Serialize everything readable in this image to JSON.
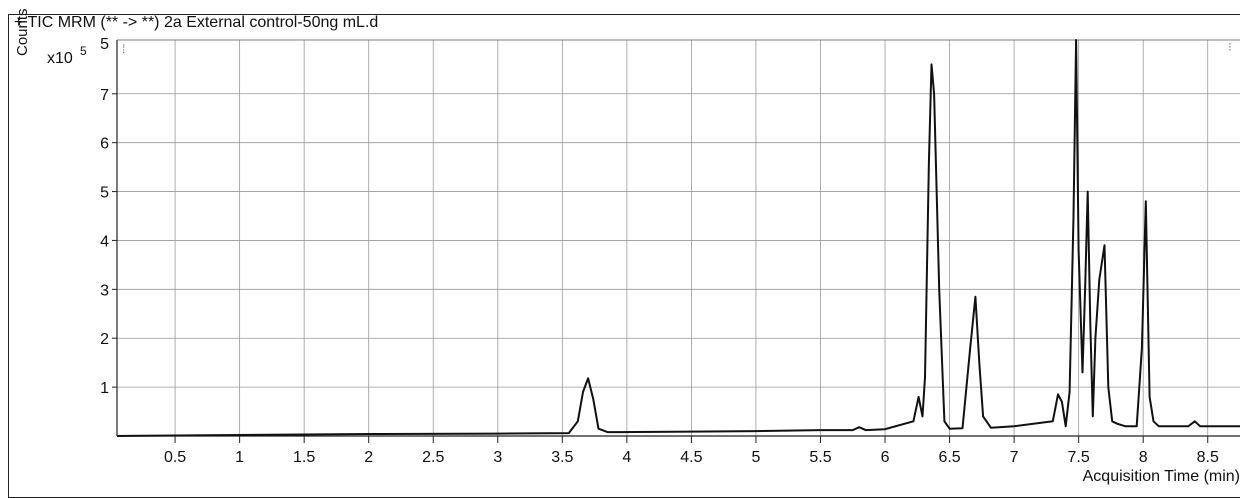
{
  "chart_data": {
    "type": "line",
    "title": "+ TIC MRM (** -> **) 2a External control-50ng mL.d",
    "ylabel": "Counts",
    "y_multiplier_base": "x10",
    "y_multiplier_exp": "5",
    "xlabel": "Acquisition Time (min)",
    "xlim": [
      0.05,
      8.75
    ],
    "ylim": [
      0,
      8.1
    ],
    "grid": true,
    "x_ticks": [
      0.5,
      1,
      1.5,
      2,
      2.5,
      3,
      3.5,
      4,
      4.5,
      5,
      5.5,
      6,
      6.5,
      7,
      7.5,
      8,
      8.5
    ],
    "x_tick_labels": [
      "0.5",
      "1",
      "1.5",
      "2",
      "2.5",
      "3",
      "3.5",
      "4",
      "4.5",
      "5",
      "5.5",
      "6",
      "6.5",
      "7",
      "7.5",
      "8",
      "8.5"
    ],
    "y_ticks": [
      1,
      2,
      3,
      4,
      5,
      6,
      7
    ],
    "y_tick_labels": [
      "1",
      "2",
      "3",
      "4",
      "5",
      "6",
      "7"
    ],
    "series": [
      {
        "color": "#111111",
        "x": [
          0.05,
          1.0,
          2.0,
          3.0,
          3.55,
          3.62,
          3.66,
          3.7,
          3.74,
          3.78,
          3.85,
          3.95,
          4.5,
          5.0,
          5.5,
          5.75,
          5.8,
          5.85,
          6.0,
          6.22,
          6.26,
          6.29,
          6.31,
          6.34,
          6.36,
          6.38,
          6.42,
          6.46,
          6.5,
          6.6,
          6.66,
          6.7,
          6.73,
          6.76,
          6.82,
          7.0,
          7.3,
          7.34,
          7.37,
          7.4,
          7.43,
          7.46,
          7.48,
          7.5,
          7.53,
          7.55,
          7.57,
          7.59,
          7.61,
          7.63,
          7.66,
          7.7,
          7.73,
          7.76,
          7.8,
          7.86,
          7.95,
          7.99,
          8.02,
          8.05,
          8.08,
          8.12,
          8.35,
          8.4,
          8.44,
          8.6,
          8.75
        ],
        "y": [
          0.0,
          0.02,
          0.04,
          0.05,
          0.06,
          0.3,
          0.9,
          1.18,
          0.75,
          0.15,
          0.08,
          0.08,
          0.09,
          0.1,
          0.12,
          0.12,
          0.18,
          0.12,
          0.14,
          0.3,
          0.8,
          0.4,
          1.2,
          5.6,
          7.6,
          7.0,
          3.0,
          0.3,
          0.15,
          0.16,
          1.8,
          2.85,
          1.5,
          0.4,
          0.17,
          0.2,
          0.3,
          0.85,
          0.7,
          0.2,
          0.9,
          4.5,
          8.1,
          3.8,
          1.3,
          3.0,
          5.0,
          2.3,
          0.4,
          2.0,
          3.2,
          3.9,
          1.0,
          0.3,
          0.25,
          0.2,
          0.2,
          1.8,
          4.8,
          0.8,
          0.3,
          0.2,
          0.2,
          0.3,
          0.2,
          0.2,
          0.2
        ]
      }
    ]
  }
}
